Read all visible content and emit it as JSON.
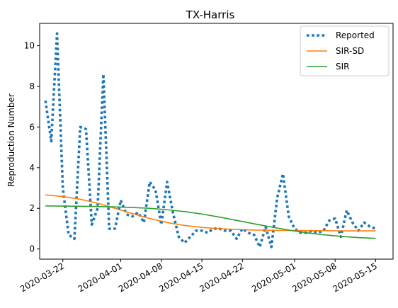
{
  "chart_data": {
    "type": "line",
    "title": "TX-Harris",
    "xlabel": "",
    "ylabel": "Reproduction Number",
    "x_axis": {
      "type": "date",
      "range": [
        "2020-03-18",
        "2020-05-18"
      ],
      "ticks": [
        "2020-03-22",
        "2020-04-01",
        "2020-04-08",
        "2020-04-15",
        "2020-04-22",
        "2020-05-01",
        "2020-05-08",
        "2020-05-15"
      ]
    },
    "ylim": [
      -0.5,
      11.1
    ],
    "y_ticks": [
      0,
      2,
      4,
      6,
      8,
      10
    ],
    "grid": false,
    "legend_position": "top-right",
    "series": [
      {
        "name": "Reported",
        "style": "dotted",
        "color": "#1f77b4",
        "x": [
          "2020-03-19",
          "2020-03-20",
          "2020-03-21",
          "2020-03-22",
          "2020-03-23",
          "2020-03-24",
          "2020-03-25",
          "2020-03-26",
          "2020-03-27",
          "2020-03-28",
          "2020-03-29",
          "2020-03-30",
          "2020-03-31",
          "2020-04-01",
          "2020-04-02",
          "2020-04-03",
          "2020-04-04",
          "2020-04-05",
          "2020-04-06",
          "2020-04-07",
          "2020-04-08",
          "2020-04-09",
          "2020-04-10",
          "2020-04-11",
          "2020-04-12",
          "2020-04-13",
          "2020-04-14",
          "2020-04-15",
          "2020-04-16",
          "2020-04-17",
          "2020-04-18",
          "2020-04-19",
          "2020-04-20",
          "2020-04-21",
          "2020-04-22",
          "2020-04-23",
          "2020-04-24",
          "2020-04-25",
          "2020-04-26",
          "2020-04-27",
          "2020-04-28",
          "2020-04-29",
          "2020-04-30",
          "2020-05-01",
          "2020-05-02",
          "2020-05-03",
          "2020-05-04",
          "2020-05-05",
          "2020-05-06",
          "2020-05-07",
          "2020-05-08",
          "2020-05-09",
          "2020-05-10",
          "2020-05-11",
          "2020-05-12",
          "2020-05-13",
          "2020-05-14",
          "2020-05-15"
        ],
        "y": [
          7.3,
          5.3,
          10.6,
          3.0,
          0.7,
          0.5,
          6.0,
          5.9,
          1.2,
          2.0,
          8.6,
          1.0,
          1.0,
          2.4,
          1.7,
          1.6,
          1.8,
          1.3,
          3.3,
          2.9,
          1.2,
          3.3,
          1.8,
          0.6,
          0.3,
          0.6,
          0.9,
          0.9,
          0.8,
          1.0,
          1.0,
          0.9,
          0.9,
          0.5,
          1.0,
          0.8,
          0.7,
          0.1,
          1.1,
          0.1,
          2.5,
          3.7,
          1.6,
          1.0,
          0.8,
          0.8,
          0.9,
          0.8,
          0.9,
          1.4,
          1.5,
          0.6,
          1.9,
          1.3,
          0.9,
          1.3,
          1.1,
          1.0
        ]
      },
      {
        "name": "SIR-SD",
        "style": "solid",
        "color": "#ff7f0e",
        "x": [
          "2020-03-19",
          "2020-03-22",
          "2020-03-25",
          "2020-03-28",
          "2020-03-31",
          "2020-04-03",
          "2020-04-06",
          "2020-04-09",
          "2020-04-12",
          "2020-04-15",
          "2020-04-18",
          "2020-04-21",
          "2020-04-24",
          "2020-04-27",
          "2020-04-30",
          "2020-05-03",
          "2020-05-06",
          "2020-05-09",
          "2020-05-12",
          "2020-05-15"
        ],
        "y": [
          2.66,
          2.58,
          2.45,
          2.25,
          2.0,
          1.74,
          1.5,
          1.3,
          1.16,
          1.06,
          1.0,
          0.96,
          0.93,
          0.92,
          0.91,
          0.9,
          0.9,
          0.89,
          0.89,
          0.89
        ]
      },
      {
        "name": "SIR",
        "style": "solid",
        "color": "#2ca02c",
        "x": [
          "2020-03-19",
          "2020-03-22",
          "2020-03-25",
          "2020-03-28",
          "2020-03-31",
          "2020-04-03",
          "2020-04-06",
          "2020-04-09",
          "2020-04-12",
          "2020-04-15",
          "2020-04-18",
          "2020-04-21",
          "2020-04-24",
          "2020-04-27",
          "2020-04-30",
          "2020-05-03",
          "2020-05-06",
          "2020-05-09",
          "2020-05-12",
          "2020-05-15"
        ],
        "y": [
          2.12,
          2.11,
          2.1,
          2.09,
          2.07,
          2.04,
          2.0,
          1.93,
          1.84,
          1.72,
          1.57,
          1.41,
          1.24,
          1.08,
          0.93,
          0.8,
          0.7,
          0.62,
          0.56,
          0.52
        ]
      }
    ]
  }
}
